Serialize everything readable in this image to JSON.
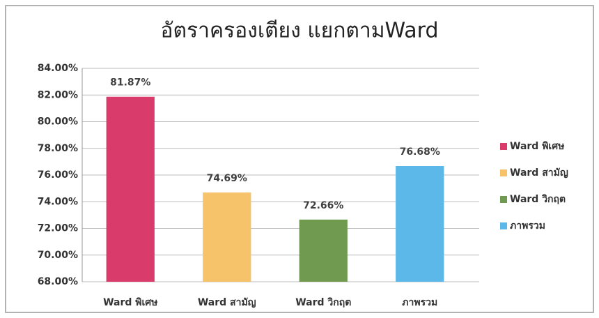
{
  "chart_data": {
    "type": "bar",
    "title": "อัตราครองเตียง แยกตามWard",
    "categories": [
      "Ward พิเศษ",
      "Ward สามัญ",
      "Ward วิกฤต",
      "ภาพรวม"
    ],
    "values": [
      81.87,
      74.69,
      72.66,
      76.68
    ],
    "value_labels": [
      "81.87%",
      "74.69%",
      "72.66%",
      "76.68%"
    ],
    "colors": [
      "#d93b6b",
      "#f6c26a",
      "#6f9a50",
      "#5cb8e8"
    ],
    "ylim": [
      68,
      84
    ],
    "yticks": [
      {
        "value": 68,
        "label": "68.00%"
      },
      {
        "value": 70,
        "label": "70.00%"
      },
      {
        "value": 72,
        "label": "72.00%"
      },
      {
        "value": 74,
        "label": "74.00%"
      },
      {
        "value": 76,
        "label": "76.00%"
      },
      {
        "value": 78,
        "label": "78.00%"
      },
      {
        "value": 80,
        "label": "80.00%"
      },
      {
        "value": 82,
        "label": "82.00%"
      },
      {
        "value": 84,
        "label": "84.00%"
      }
    ],
    "grid": true,
    "legend": "right"
  }
}
